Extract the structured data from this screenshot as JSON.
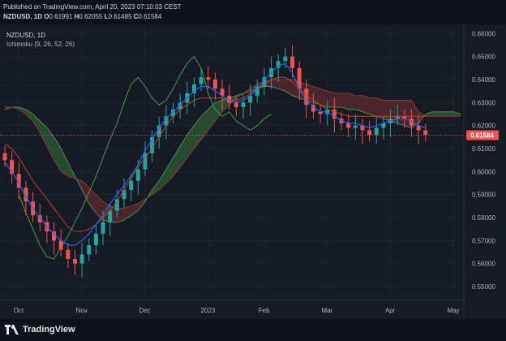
{
  "header": {
    "published": "Published on TradingView.com, April 20, 2023 07:10:03 CEST",
    "symbol": "NZDUSD, 1D",
    "ohlc": [
      {
        "label": "O",
        "value": "0.61991"
      },
      {
        "label": "H",
        "value": "0.62055"
      },
      {
        "label": "L",
        "value": "0.61485"
      },
      {
        "label": "C",
        "value": "0.61584"
      }
    ]
  },
  "chart_title": {
    "symbol": "NZDUSD, 1D",
    "indicator": "Ichimoku (9, 26, 52, 26)"
  },
  "footer": {
    "brand": "TradingView"
  },
  "colors": {
    "background": "#161a25",
    "grid": "#1f2330",
    "up": "#26a69a",
    "down": "#ef5350",
    "conversion": "#2962ff",
    "base": "#b7472a",
    "lagging": "#43a047",
    "cloud_bull": "#2e5b36",
    "cloud_bear": "#5c2a2e",
    "price_tag": "#ef5350"
  },
  "chart_data": {
    "type": "candlestick",
    "title": "",
    "ylim": [
      0.544,
      0.664
    ],
    "y_ticks": [
      "0.66000",
      "0.65000",
      "0.64000",
      "0.63000",
      "0.62000",
      "0.61000",
      "0.60000",
      "0.59000",
      "0.58000",
      "0.57000",
      "0.56000",
      "0.55000"
    ],
    "last_price": "0.61584",
    "x_ticks": [
      "Oct",
      "Nov",
      "Dec",
      "2023",
      "Feb",
      "Mar",
      "Apr",
      "May"
    ],
    "grid": true,
    "series": {
      "close": [
        0.605,
        0.599,
        0.593,
        0.587,
        0.581,
        0.578,
        0.574,
        0.57,
        0.566,
        0.562,
        0.56,
        0.564,
        0.568,
        0.573,
        0.578,
        0.583,
        0.588,
        0.592,
        0.596,
        0.601,
        0.608,
        0.615,
        0.62,
        0.624,
        0.627,
        0.63,
        0.634,
        0.638,
        0.641,
        0.64,
        0.636,
        0.633,
        0.63,
        0.628,
        0.63,
        0.633,
        0.637,
        0.641,
        0.645,
        0.648,
        0.65,
        0.645,
        0.636,
        0.629,
        0.626,
        0.625,
        0.627,
        0.623,
        0.621,
        0.619,
        0.62,
        0.618,
        0.616,
        0.619,
        0.621,
        0.623,
        0.624,
        0.623,
        0.62,
        0.618,
        0.616
      ],
      "tenkan": [
        0.604,
        0.6,
        0.595,
        0.589,
        0.584,
        0.58,
        0.576,
        0.573,
        0.57,
        0.568,
        0.568,
        0.57,
        0.573,
        0.577,
        0.581,
        0.586,
        0.59,
        0.594,
        0.598,
        0.603,
        0.609,
        0.614,
        0.619,
        0.623,
        0.626,
        0.629,
        0.632,
        0.635,
        0.637,
        0.637,
        0.635,
        0.633,
        0.631,
        0.63,
        0.631,
        0.633,
        0.636,
        0.64,
        0.643,
        0.646,
        0.647,
        0.643,
        0.636,
        0.631,
        0.628,
        0.626,
        0.626,
        0.624,
        0.622,
        0.621,
        0.621,
        0.62,
        0.619,
        0.62,
        0.621,
        0.622,
        0.623,
        0.623,
        0.622,
        0.62,
        0.619
      ],
      "kijun": [
        0.612,
        0.61,
        0.606,
        0.601,
        0.596,
        0.592,
        0.588,
        0.584,
        0.58,
        0.576,
        0.574,
        0.574,
        0.575,
        0.577,
        0.58,
        0.583,
        0.587,
        0.592,
        0.597,
        0.602,
        0.606,
        0.61,
        0.615,
        0.62,
        0.624,
        0.627,
        0.629,
        0.631,
        0.632,
        0.632,
        0.632,
        0.632,
        0.631,
        0.631,
        0.632,
        0.634,
        0.636,
        0.638,
        0.64,
        0.641,
        0.641,
        0.639,
        0.636,
        0.633,
        0.631,
        0.629,
        0.627,
        0.626,
        0.625,
        0.624,
        0.624,
        0.624,
        0.624,
        0.624,
        0.624,
        0.624,
        0.624,
        0.624,
        0.624,
        0.624,
        0.624
      ],
      "senkou_a": [
        0.627,
        0.628,
        0.628,
        0.627,
        0.625,
        0.622,
        0.619,
        0.615,
        0.61,
        0.604,
        0.598,
        0.592,
        0.586,
        0.582,
        0.579,
        0.578,
        0.578,
        0.579,
        0.581,
        0.583,
        0.587,
        0.592,
        0.596,
        0.601,
        0.606,
        0.611,
        0.616,
        0.62,
        0.624,
        0.627,
        0.63,
        0.631,
        0.632,
        0.633,
        0.634,
        0.635,
        0.636,
        0.637,
        0.637,
        0.636,
        0.635,
        0.633,
        0.632,
        0.631,
        0.63,
        0.629,
        0.628,
        0.628,
        0.628,
        0.627,
        0.627,
        0.626,
        0.625,
        0.624,
        0.623,
        0.622,
        0.621,
        0.62,
        0.619,
        0.621,
        0.625,
        0.626,
        0.626,
        0.626,
        0.626,
        0.625
      ],
      "senkou_b": [
        0.628,
        0.628,
        0.627,
        0.625,
        0.622,
        0.617,
        0.611,
        0.605,
        0.6,
        0.598,
        0.597,
        0.596,
        0.593,
        0.59,
        0.587,
        0.585,
        0.584,
        0.584,
        0.585,
        0.586,
        0.588,
        0.59,
        0.592,
        0.595,
        0.598,
        0.602,
        0.606,
        0.61,
        0.614,
        0.618,
        0.622,
        0.626,
        0.629,
        0.632,
        0.634,
        0.636,
        0.638,
        0.639,
        0.64,
        0.64,
        0.64,
        0.64,
        0.639,
        0.638,
        0.637,
        0.636,
        0.635,
        0.634,
        0.634,
        0.634,
        0.633,
        0.633,
        0.632,
        0.632,
        0.631,
        0.631,
        0.631,
        0.631,
        0.631,
        0.626,
        0.624,
        0.624,
        0.624,
        0.624,
        0.624,
        0.624
      ],
      "chikou": [
        0.59,
        0.582,
        0.575,
        0.568,
        0.563,
        0.562,
        0.567,
        0.572,
        0.578,
        0.584,
        0.591,
        0.598,
        0.606,
        0.614,
        0.621,
        0.63,
        0.638,
        0.641,
        0.637,
        0.632,
        0.629,
        0.631,
        0.636,
        0.642,
        0.647,
        0.65,
        0.645,
        0.634,
        0.627,
        0.624,
        0.626,
        0.622,
        0.62,
        0.618,
        0.62,
        0.623,
        0.625
      ]
    }
  }
}
